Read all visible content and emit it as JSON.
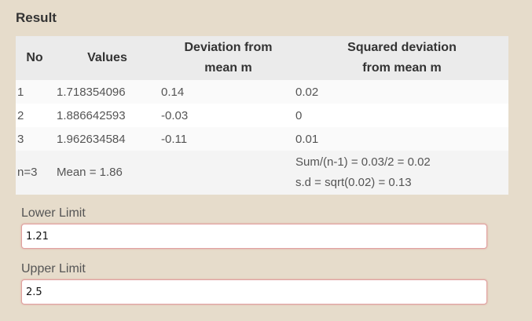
{
  "result": {
    "heading": "Result",
    "columns": [
      "No",
      "Values",
      "Deviation from mean m",
      "Squared deviation from mean m"
    ],
    "column_lines": {
      "dev": [
        "Deviation from",
        "mean m"
      ],
      "sq": [
        "Squared deviation",
        "from mean m"
      ]
    },
    "rows": [
      {
        "no": "1",
        "value": "1.718354096",
        "dev": "0.14",
        "sq": "0.02"
      },
      {
        "no": "2",
        "value": "1.886642593",
        "dev": "-0.03",
        "sq": "0"
      },
      {
        "no": "3",
        "value": "1.962634584",
        "dev": "-0.11",
        "sq": "0.01"
      }
    ],
    "summary": {
      "n": "n=3",
      "mean": "Mean = 1.86",
      "variance": "Sum/(n-1) = 0.03/2 = 0.02",
      "sd": "s.d = sqrt(0.02) = 0.13"
    }
  },
  "lower_limit": {
    "label": "Lower Limit",
    "value": "1.21"
  },
  "upper_limit": {
    "label": "Upper Limit",
    "value": "2.5"
  }
}
